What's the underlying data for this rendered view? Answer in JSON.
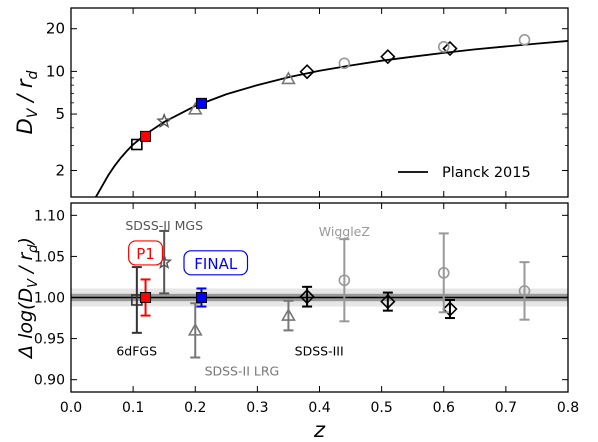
{
  "chart_data": [
    {
      "type": "line",
      "panel": "top",
      "ylabel": "D_V / r_d",
      "yscale": "log",
      "xlim": [
        0.0,
        0.8
      ],
      "ylim": [
        1.3,
        28
      ],
      "yticks": [
        2,
        5,
        10,
        20
      ],
      "ytick_labels": [
        "2",
        "5",
        "10",
        "20"
      ],
      "legend": {
        "placement": "lower-right",
        "entries": [
          "Planck 2015"
        ]
      },
      "model": {
        "name": "Planck 2015",
        "x": [
          0.04,
          0.05,
          0.06,
          0.07,
          0.08,
          0.09,
          0.1,
          0.12,
          0.15,
          0.2,
          0.25,
          0.3,
          0.35,
          0.4,
          0.45,
          0.5,
          0.55,
          0.6,
          0.65,
          0.7,
          0.75,
          0.8
        ],
        "y": [
          1.3,
          1.55,
          1.85,
          2.15,
          2.45,
          2.75,
          3.05,
          3.6,
          4.4,
          5.7,
          6.9,
          8.0,
          9.1,
          10.1,
          11.0,
          11.9,
          12.7,
          13.5,
          14.3,
          15.0,
          15.7,
          16.4
        ]
      },
      "series": [
        {
          "label": "6dFGS",
          "marker": "square-open",
          "color": "#000000",
          "x": [
            0.106
          ],
          "y": [
            3.05
          ]
        },
        {
          "label": "P1",
          "marker": "square-filled",
          "color": "#ff0000",
          "x": [
            0.12
          ],
          "y": [
            3.48
          ]
        },
        {
          "label": "SDSS-II MGS",
          "marker": "star-open",
          "color": "#555555",
          "x": [
            0.15
          ],
          "y": [
            4.45
          ]
        },
        {
          "label": "SDSS-II LRG",
          "marker": "triangle-open",
          "color": "#777777",
          "x": [
            0.2
          ],
          "y": [
            5.4
          ]
        },
        {
          "label": "FINAL",
          "marker": "square-filled",
          "color": "#0000ff",
          "x": [
            0.21
          ],
          "y": [
            5.95
          ]
        },
        {
          "label": "SDSS-II LRG",
          "marker": "triangle-open",
          "color": "#777777",
          "x": [
            0.35
          ],
          "y": [
            8.85
          ]
        },
        {
          "label": "SDSS-III",
          "marker": "diamond-open",
          "color": "#000000",
          "x": [
            0.38,
            0.51,
            0.61
          ],
          "y": [
            9.95,
            12.7,
            14.5
          ]
        },
        {
          "label": "WiggleZ",
          "marker": "circle-open",
          "color": "#999999",
          "x": [
            0.44,
            0.6,
            0.73
          ],
          "y": [
            11.4,
            14.9,
            16.7
          ]
        }
      ]
    },
    {
      "type": "scatter",
      "panel": "bottom",
      "xlabel": "z",
      "ylabel": "Δ log(D_V / r_d)",
      "xlim": [
        0.0,
        0.8
      ],
      "ylim": [
        0.885,
        1.115
      ],
      "xticks": [
        0.0,
        0.1,
        0.2,
        0.3,
        0.4,
        0.5,
        0.6,
        0.7,
        0.8
      ],
      "xtick_labels": [
        "0.0",
        "0.1",
        "0.2",
        "0.3",
        "0.4",
        "0.5",
        "0.6",
        "0.7",
        "0.8"
      ],
      "yticks": [
        0.9,
        0.95,
        1.0,
        1.05,
        1.1
      ],
      "ytick_labels": [
        "0.90",
        "0.95",
        "1.00",
        "1.05",
        "1.10"
      ],
      "reference": {
        "y": 1.0,
        "band_inner": 0.0045,
        "band_outer": 0.011
      },
      "series": [
        {
          "label": "6dFGS",
          "marker": "square-open",
          "color": "#333333",
          "x": [
            0.106
          ],
          "y": [
            0.997
          ],
          "err": [
            0.04
          ]
        },
        {
          "label": "P1",
          "marker": "square-filled",
          "color": "#ff0000",
          "x": [
            0.12
          ],
          "y": [
            1.0
          ],
          "err": [
            0.022
          ]
        },
        {
          "label": "SDSS-II MGS",
          "marker": "star-open",
          "color": "#555555",
          "x": [
            0.15
          ],
          "y": [
            1.043
          ],
          "err": [
            0.038
          ]
        },
        {
          "label": "SDSS-II LRG",
          "marker": "triangle-open",
          "color": "#777777",
          "x": [
            0.2
          ],
          "y": [
            0.96
          ],
          "err": [
            0.033
          ]
        },
        {
          "label": "FINAL",
          "marker": "square-filled",
          "color": "#0000ff",
          "x": [
            0.21
          ],
          "y": [
            1.0
          ],
          "err": [
            0.011
          ]
        },
        {
          "label": "SDSS-II LRG",
          "marker": "triangle-open",
          "color": "#777777",
          "x": [
            0.35
          ],
          "y": [
            0.978
          ],
          "err": [
            0.018
          ]
        },
        {
          "label": "SDSS-III",
          "marker": "diamond-open",
          "color": "#000000",
          "x": [
            0.38,
            0.51,
            0.61
          ],
          "y": [
            1.001,
            0.995,
            0.986
          ],
          "err": [
            0.012,
            0.011,
            0.011
          ]
        },
        {
          "label": "WiggleZ",
          "marker": "circle-open",
          "color": "#999999",
          "x": [
            0.44,
            0.6,
            0.73
          ],
          "y": [
            1.021,
            1.03,
            1.008
          ],
          "err": [
            0.05,
            0.048,
            0.035
          ]
        }
      ],
      "annotations": [
        {
          "text": "SDSS-II MGS",
          "color": "#555555",
          "x": 0.15,
          "y": 1.087,
          "anchor": "middle",
          "boxed": false
        },
        {
          "text": "WiggleZ",
          "color": "#999999",
          "x": 0.44,
          "y": 1.08,
          "anchor": "middle",
          "boxed": false
        },
        {
          "text": "P1",
          "color": "#ff0000",
          "x": 0.12,
          "y": 1.053,
          "anchor": "middle",
          "boxed": true
        },
        {
          "text": "FINAL",
          "color": "#0000ff",
          "x": 0.233,
          "y": 1.041,
          "anchor": "middle",
          "boxed": true
        },
        {
          "text": "6dFGS",
          "color": "#000000",
          "x": 0.073,
          "y": 0.934,
          "anchor": "start",
          "boxed": false
        },
        {
          "text": "SDSS-III",
          "color": "#000000",
          "x": 0.36,
          "y": 0.934,
          "anchor": "start",
          "boxed": false
        },
        {
          "text": "SDSS-II LRG",
          "color": "#777777",
          "x": 0.215,
          "y": 0.91,
          "anchor": "start",
          "boxed": false
        }
      ]
    }
  ]
}
